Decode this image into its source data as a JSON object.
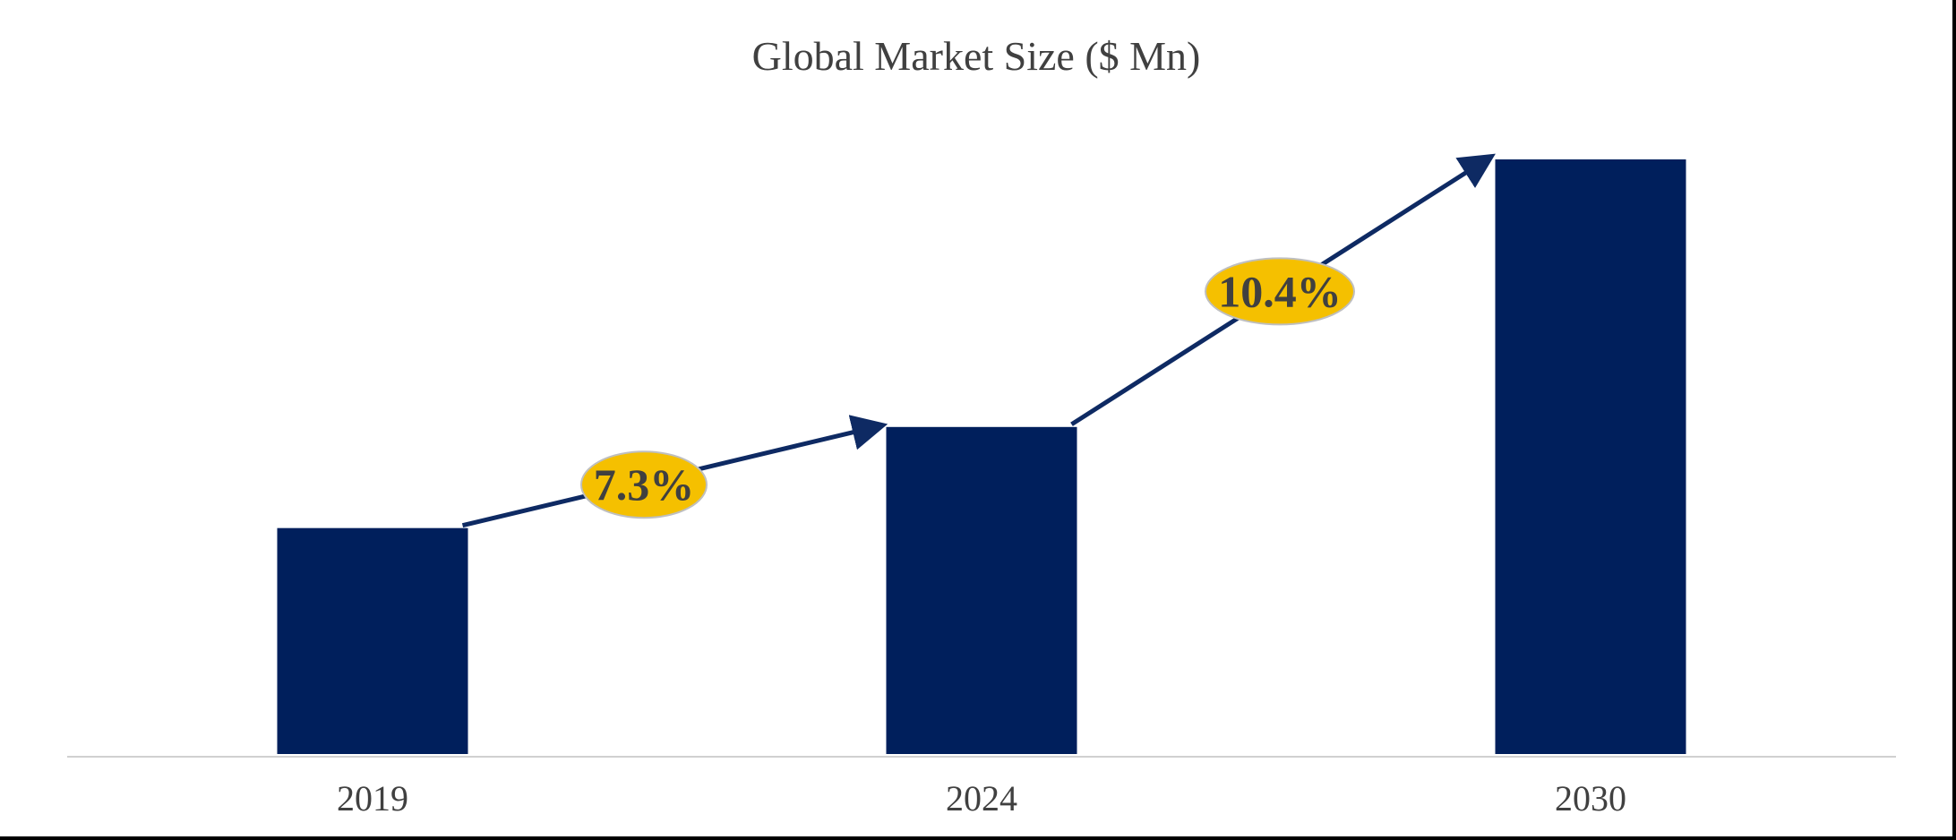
{
  "chart_data": {
    "type": "bar",
    "title": "Global Market Size ($ Mn)",
    "xlabel": "",
    "ylabel": "",
    "categories": [
      "2019",
      "2024",
      "2030"
    ],
    "values": [
      38,
      55,
      100
    ],
    "ylim": [
      0,
      100
    ],
    "grid": false,
    "legend": "none",
    "annotations": [
      {
        "from": "2019",
        "to": "2024",
        "label": "7.3%"
      },
      {
        "from": "2024",
        "to": "2030",
        "label": "10.4%"
      }
    ],
    "colors": {
      "bar": "#001f5c",
      "arrow": "#0e2a63",
      "badge_fill": "#f5c000",
      "badge_stroke": "#bfbfbf",
      "axis": "#d0d0d0",
      "text": "#404040"
    }
  }
}
